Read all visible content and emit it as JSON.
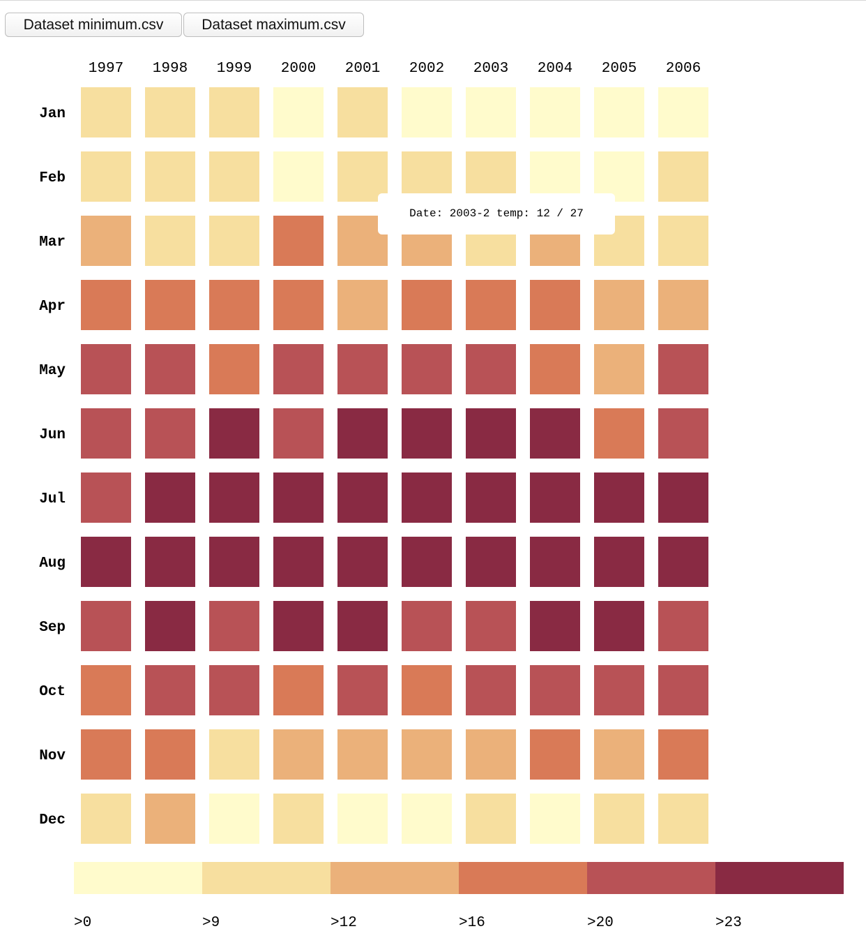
{
  "controls": {
    "min_button": "Dataset minimum.csv",
    "max_button": "Dataset maximum.csv"
  },
  "tooltip": {
    "text": "Date: 2003-2 temp: 12 / 27"
  },
  "chart_data": {
    "type": "heatmap",
    "title": "",
    "xlabel": "",
    "ylabel": "",
    "x": [
      "1997",
      "1998",
      "1999",
      "2000",
      "2001",
      "2002",
      "2003",
      "2004",
      "2005",
      "2006"
    ],
    "y": [
      "Jan",
      "Feb",
      "Mar",
      "Apr",
      "May",
      "Jun",
      "Jul",
      "Aug",
      "Sep",
      "Oct",
      "Nov",
      "Dec"
    ],
    "bin_thresholds": [
      0,
      9,
      12,
      16,
      20,
      23
    ],
    "legend_labels": [
      ">0",
      ">9",
      ">12",
      ">16",
      ">20",
      ">23"
    ],
    "colors": [
      "#fffbcc",
      "#f7df9f",
      "#ebb17a",
      "#d97a57",
      "#b85256",
      "#892a43"
    ],
    "values_by_bin": [
      [
        1,
        1,
        1,
        0,
        1,
        0,
        0,
        0,
        0,
        0
      ],
      [
        1,
        1,
        1,
        0,
        1,
        1,
        1,
        0,
        0,
        1
      ],
      [
        2,
        1,
        1,
        3,
        2,
        2,
        1,
        2,
        1,
        1
      ],
      [
        3,
        3,
        3,
        3,
        2,
        3,
        3,
        3,
        2,
        2
      ],
      [
        4,
        4,
        3,
        4,
        4,
        4,
        4,
        3,
        2,
        4
      ],
      [
        4,
        4,
        5,
        4,
        5,
        5,
        5,
        5,
        3,
        4
      ],
      [
        4,
        5,
        5,
        5,
        5,
        5,
        5,
        5,
        5,
        5
      ],
      [
        5,
        5,
        5,
        5,
        5,
        5,
        5,
        5,
        5,
        5
      ],
      [
        4,
        5,
        4,
        5,
        5,
        4,
        4,
        5,
        5,
        4
      ],
      [
        3,
        4,
        4,
        3,
        4,
        3,
        4,
        4,
        4,
        4
      ],
      [
        3,
        3,
        1,
        2,
        2,
        2,
        2,
        3,
        2,
        3
      ],
      [
        1,
        2,
        0,
        1,
        0,
        0,
        1,
        0,
        1,
        1
      ]
    ],
    "legend_position": "bottom"
  }
}
